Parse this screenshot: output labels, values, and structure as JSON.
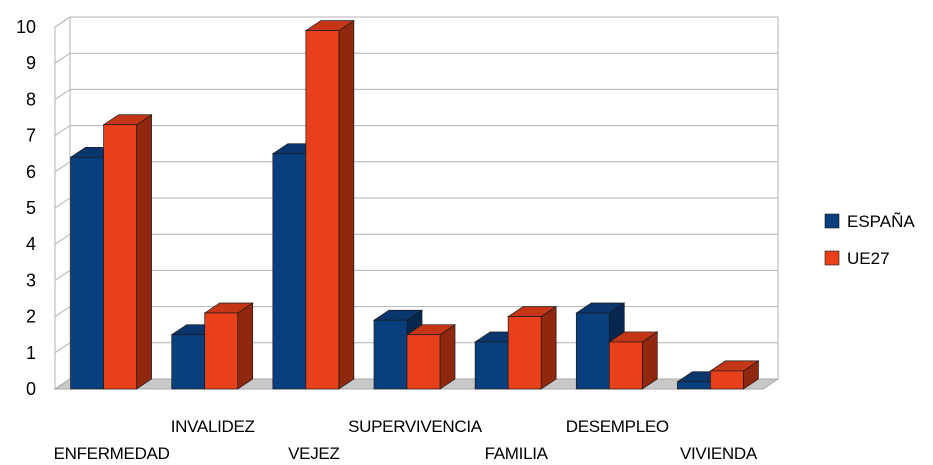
{
  "chart_data": {
    "type": "bar",
    "title": "",
    "xlabel": "",
    "ylabel": "",
    "ylim": [
      0,
      10
    ],
    "yticks": [
      0,
      1,
      2,
      3,
      4,
      5,
      6,
      7,
      8,
      9,
      10
    ],
    "grid": true,
    "legend_position": "right",
    "categories": [
      "ENFERMEDAD",
      "INVALIDEZ",
      "VEJEZ",
      "SUPERVIVENCIA",
      "FAMILIA",
      "DESEMPLEO",
      "VIVIENDA"
    ],
    "series": [
      {
        "name": "ESPAÑA",
        "color": "#0a3f7f",
        "values": [
          6.4,
          1.5,
          6.5,
          1.9,
          1.3,
          2.1,
          0.2
        ]
      },
      {
        "name": "UE27",
        "color": "#e8401a",
        "values": [
          7.3,
          2.1,
          9.9,
          1.5,
          2.0,
          1.3,
          0.5
        ]
      }
    ]
  }
}
